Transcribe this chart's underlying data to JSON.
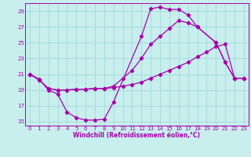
{
  "xlabel": "Windchill (Refroidissement éolien,°C)",
  "bg_color": "#c8eeee",
  "grid_color": "#aadddd",
  "line_color": "#aa00aa",
  "xlim": [
    -0.5,
    23.5
  ],
  "ylim": [
    14.5,
    30.0
  ],
  "yticks": [
    15,
    17,
    19,
    21,
    23,
    25,
    27,
    29
  ],
  "xticks": [
    0,
    1,
    2,
    3,
    4,
    5,
    6,
    7,
    8,
    9,
    10,
    11,
    12,
    13,
    14,
    15,
    16,
    17,
    18,
    19,
    20,
    21,
    22,
    23
  ],
  "series1_x": [
    0,
    1,
    2,
    3,
    4,
    5,
    6,
    7,
    8,
    9,
    12,
    13,
    14,
    15,
    16,
    17,
    18,
    20,
    21,
    22,
    23
  ],
  "series1_y": [
    21.0,
    20.4,
    19.0,
    18.5,
    16.2,
    15.5,
    15.2,
    15.2,
    15.3,
    17.5,
    25.8,
    29.3,
    29.5,
    29.2,
    29.2,
    28.5,
    27.0,
    25.0,
    22.5,
    20.5,
    20.5
  ],
  "series2_x": [
    0,
    1,
    2,
    3,
    4,
    5,
    6,
    7,
    8,
    9,
    10,
    11,
    12,
    13,
    14,
    15,
    16,
    17,
    18,
    19,
    20,
    21,
    22,
    23
  ],
  "series2_y": [
    21.0,
    20.3,
    19.2,
    19.0,
    19.0,
    19.1,
    19.1,
    19.2,
    19.2,
    19.3,
    19.5,
    19.7,
    20.0,
    20.5,
    21.0,
    21.5,
    22.0,
    22.5,
    23.2,
    23.8,
    24.5,
    24.8,
    20.5,
    20.5
  ],
  "series3_x": [
    0,
    1,
    2,
    3,
    4,
    5,
    6,
    7,
    8,
    9,
    10,
    11,
    12,
    13,
    14,
    15,
    16,
    17,
    18,
    20,
    21,
    22,
    23
  ],
  "series3_y": [
    21.0,
    20.3,
    19.2,
    19.0,
    19.0,
    19.1,
    19.1,
    19.2,
    19.2,
    19.5,
    20.5,
    21.5,
    23.0,
    24.8,
    25.8,
    26.8,
    27.8,
    27.5,
    27.0,
    25.0,
    22.5,
    20.5,
    20.5
  ],
  "marker_size": 2.2,
  "line_width": 0.9,
  "tick_fontsize": 5.0,
  "xlabel_fontsize": 5.5
}
